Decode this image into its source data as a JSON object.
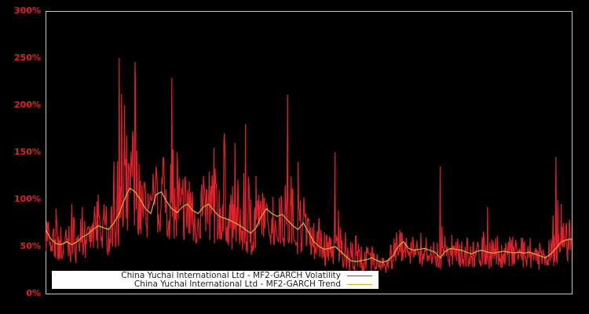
{
  "chart_data": {
    "type": "line",
    "title": "",
    "xlabel": "",
    "ylabel": "",
    "ylim": [
      0,
      300
    ],
    "y_ticks": [
      "0%",
      "50%",
      "100%",
      "150%",
      "200%",
      "250%",
      "300%"
    ],
    "grid": false,
    "legend_position": "lower left",
    "series": [
      {
        "name": "China Yuchai International Ltd - MF2-GARCH Volatility",
        "color": "#e0202a",
        "x_frac": [
          0,
          0.01,
          0.02,
          0.03,
          0.04,
          0.05,
          0.06,
          0.07,
          0.08,
          0.09,
          0.1,
          0.11,
          0.12,
          0.13,
          0.14,
          0.15,
          0.16,
          0.17,
          0.18,
          0.19,
          0.2,
          0.21,
          0.22,
          0.23,
          0.24,
          0.25,
          0.26,
          0.27,
          0.28,
          0.29,
          0.3,
          0.31,
          0.32,
          0.33,
          0.34,
          0.35,
          0.36,
          0.37,
          0.38,
          0.39,
          0.4,
          0.41,
          0.42,
          0.43,
          0.44,
          0.45,
          0.46,
          0.47,
          0.48,
          0.49,
          0.5,
          0.51,
          0.52,
          0.53,
          0.54,
          0.55,
          0.56,
          0.57,
          0.58,
          0.59,
          0.6,
          0.61,
          0.62,
          0.63,
          0.64,
          0.65,
          0.66,
          0.67,
          0.68,
          0.69,
          0.7,
          0.71,
          0.72,
          0.73,
          0.74,
          0.75,
          0.76,
          0.77,
          0.78,
          0.79,
          0.8,
          0.81,
          0.82,
          0.83,
          0.84,
          0.85,
          0.86,
          0.87,
          0.88,
          0.89,
          0.9,
          0.91,
          0.92,
          0.93,
          0.94,
          0.95,
          0.96,
          0.97,
          0.98,
          0.99,
          1.0
        ],
        "values": [
          65,
          45,
          90,
          50,
          55,
          95,
          60,
          92,
          70,
          75,
          105,
          80,
          70,
          140,
          250,
          200,
          130,
          246,
          120,
          110,
          100,
          135,
          95,
          90,
          229,
          150,
          105,
          110,
          90,
          80,
          125,
          100,
          155,
          110,
          170,
          95,
          160,
          90,
          180,
          100,
          125,
          85,
          95,
          80,
          60,
          75,
          211,
          110,
          140,
          85,
          80,
          75,
          80,
          65,
          60,
          150,
          70,
          65,
          55,
          62,
          50,
          50,
          45,
          42,
          38,
          35,
          35,
          40,
          45,
          40,
          38,
          45,
          42,
          40,
          38,
          135,
          50,
          48,
          55,
          45,
          42,
          40,
          48,
          60,
          92,
          50,
          45,
          42,
          55,
          50,
          48,
          55,
          42,
          45,
          50,
          40,
          42,
          145,
          95,
          75,
          55
        ]
      },
      {
        "name": "China Yuchai International Ltd - MF2-GARCH Trend",
        "color": "#d4aa30",
        "x_frac": [
          0,
          0.01,
          0.02,
          0.03,
          0.04,
          0.05,
          0.06,
          0.07,
          0.08,
          0.09,
          0.1,
          0.11,
          0.12,
          0.13,
          0.14,
          0.15,
          0.16,
          0.17,
          0.18,
          0.19,
          0.2,
          0.21,
          0.22,
          0.23,
          0.24,
          0.25,
          0.26,
          0.27,
          0.28,
          0.29,
          0.3,
          0.31,
          0.32,
          0.33,
          0.34,
          0.35,
          0.36,
          0.37,
          0.38,
          0.39,
          0.4,
          0.41,
          0.42,
          0.43,
          0.44,
          0.45,
          0.46,
          0.47,
          0.48,
          0.49,
          0.5,
          0.51,
          0.52,
          0.53,
          0.54,
          0.55,
          0.56,
          0.57,
          0.58,
          0.59,
          0.6,
          0.61,
          0.62,
          0.63,
          0.64,
          0.65,
          0.66,
          0.67,
          0.68,
          0.69,
          0.7,
          0.71,
          0.72,
          0.73,
          0.74,
          0.75,
          0.76,
          0.77,
          0.78,
          0.79,
          0.8,
          0.81,
          0.82,
          0.83,
          0.84,
          0.85,
          0.86,
          0.87,
          0.88,
          0.89,
          0.9,
          0.91,
          0.92,
          0.93,
          0.94,
          0.95,
          0.96,
          0.97,
          0.98,
          0.99,
          1.0
        ],
        "values": [
          68,
          58,
          53,
          52,
          55,
          52,
          55,
          60,
          63,
          68,
          72,
          70,
          68,
          75,
          85,
          100,
          112,
          108,
          100,
          90,
          85,
          105,
          108,
          98,
          90,
          86,
          92,
          95,
          88,
          85,
          92,
          95,
          88,
          82,
          80,
          78,
          75,
          72,
          68,
          64,
          70,
          82,
          90,
          85,
          82,
          84,
          78,
          72,
          68,
          75,
          65,
          55,
          50,
          47,
          48,
          50,
          45,
          40,
          35,
          34,
          35,
          36,
          38,
          35,
          33,
          35,
          40,
          50,
          55,
          48,
          46,
          47,
          48,
          46,
          44,
          38,
          45,
          48,
          47,
          46,
          44,
          42,
          45,
          46,
          44,
          43,
          44,
          45,
          44,
          43,
          44,
          43,
          44,
          42,
          40,
          38,
          42,
          48,
          55,
          57,
          58
        ]
      }
    ]
  },
  "legend": {
    "items": [
      {
        "label": "China Yuchai International Ltd - MF2-GARCH Volatility",
        "color": "#e0202a"
      },
      {
        "label": "China Yuchai International Ltd - MF2-GARCH Trend",
        "color": "#d4aa30"
      }
    ]
  }
}
